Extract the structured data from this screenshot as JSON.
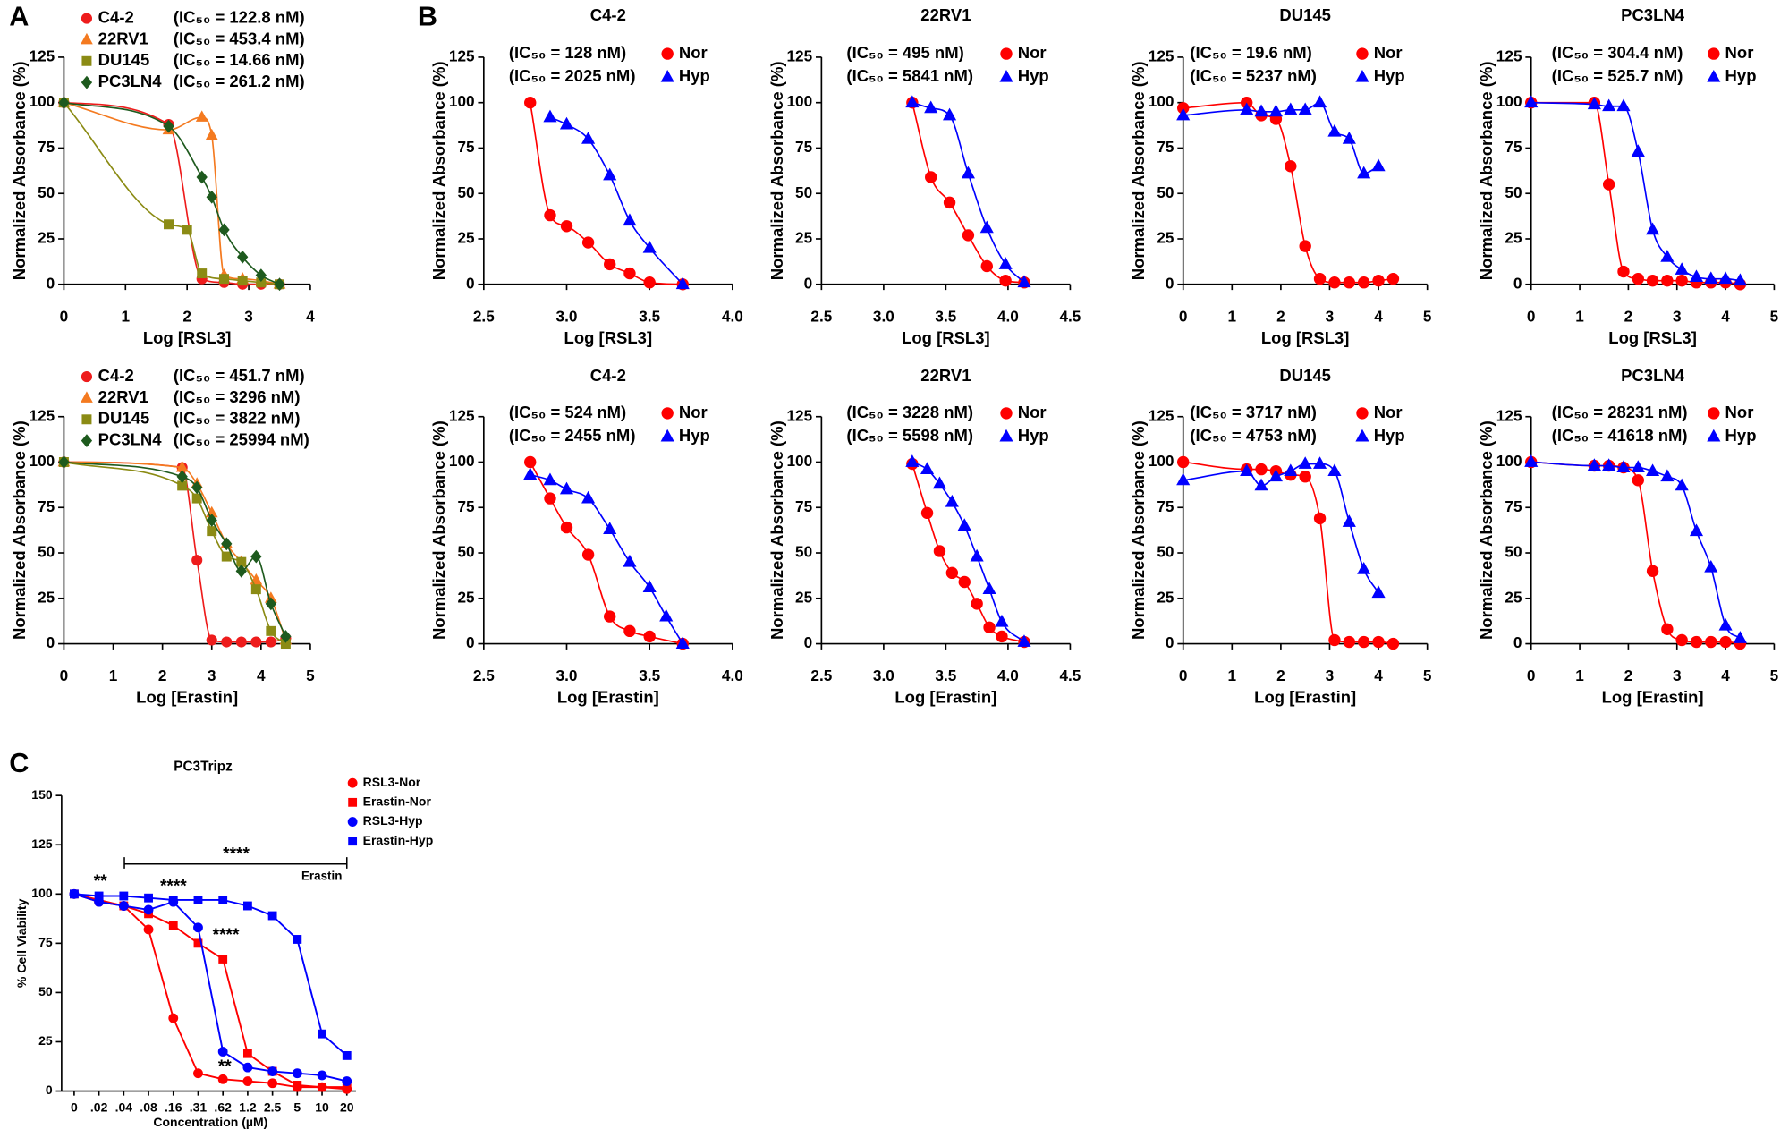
{
  "chart_data": [
    {
      "type": "scatter",
      "panel": "A",
      "fit_curve": true,
      "xlabel": "Log [RSL3]",
      "ylabel": "Normalized Absorbance (%)",
      "xlim": [
        0,
        4
      ],
      "xticks": [
        0,
        1,
        2,
        3,
        4
      ],
      "ylim": [
        0,
        125
      ],
      "yticks": [
        0,
        25,
        50,
        75,
        100,
        125
      ],
      "series": [
        {
          "name": "C4-2",
          "label": "(IC₅₀ = 122.8 nM)",
          "color": "#ee1c1c",
          "marker": "circle",
          "x": [
            0,
            1.7,
            2.24,
            2.6,
            2.9,
            3.2,
            3.5
          ],
          "values": [
            100,
            88,
            3,
            1,
            0,
            0,
            0
          ]
        },
        {
          "name": "22RV1",
          "label": "(IC₅₀ = 453.4 nM)",
          "color": "#f47a20",
          "marker": "triangle",
          "x": [
            0,
            1.7,
            2.24,
            2.4,
            2.6,
            2.9,
            3.2,
            3.5
          ],
          "values": [
            100,
            85,
            92,
            82,
            5,
            3,
            2,
            0
          ]
        },
        {
          "name": "DU145",
          "label": "(IC₅₀ = 14.66 nM)",
          "color": "#8b8b14",
          "marker": "square",
          "x": [
            0,
            1.7,
            2.0,
            2.24,
            2.6,
            2.9,
            3.2,
            3.5
          ],
          "values": [
            100,
            33,
            30,
            6,
            3,
            2,
            1,
            0
          ]
        },
        {
          "name": "PC3LN4",
          "label": "(IC₅₀ = 261.2 nM)",
          "color": "#1e5a1e",
          "marker": "diamond",
          "x": [
            0,
            1.7,
            2.24,
            2.4,
            2.6,
            2.9,
            3.2,
            3.5
          ],
          "values": [
            100,
            87,
            59,
            48,
            30,
            15,
            5,
            0
          ]
        }
      ]
    },
    {
      "type": "scatter",
      "fit_curve": true,
      "xlabel": "Log [Erastin]",
      "ylabel": "Normalized Absorbance (%)",
      "xlim": [
        0,
        5
      ],
      "xticks": [
        0,
        1,
        2,
        3,
        4,
        5
      ],
      "ylim": [
        0,
        125
      ],
      "yticks": [
        0,
        25,
        50,
        75,
        100,
        125
      ],
      "series": [
        {
          "name": "C4-2",
          "label": "(IC₅₀ = 451.7 nM)",
          "color": "#ee1c1c",
          "marker": "circle",
          "x": [
            0,
            2.4,
            2.7,
            3.0,
            3.3,
            3.6,
            3.9,
            4.2,
            4.5
          ],
          "values": [
            100,
            97,
            46,
            2,
            1,
            1,
            1,
            1,
            3
          ]
        },
        {
          "name": "22RV1",
          "label": "(IC₅₀ = 3296 nM)",
          "color": "#f47a20",
          "marker": "triangle",
          "x": [
            0,
            2.4,
            2.7,
            3.0,
            3.3,
            3.6,
            3.9,
            4.2,
            4.5
          ],
          "values": [
            100,
            97,
            88,
            72,
            55,
            45,
            35,
            25,
            2
          ]
        },
        {
          "name": "DU145",
          "label": "(IC₅₀ = 3822 nM)",
          "color": "#8b8b14",
          "marker": "square",
          "x": [
            0,
            2.4,
            2.7,
            3.0,
            3.3,
            3.6,
            3.9,
            4.2,
            4.5
          ],
          "values": [
            100,
            87,
            80,
            62,
            48,
            45,
            30,
            7,
            0
          ]
        },
        {
          "name": "PC3LN4",
          "label": "(IC₅₀ = 25994 nM)",
          "color": "#1e5a1e",
          "marker": "diamond",
          "x": [
            0,
            2.4,
            2.7,
            3.0,
            3.3,
            3.6,
            3.9,
            4.2,
            4.5
          ],
          "values": [
            100,
            92,
            86,
            68,
            55,
            40,
            48,
            22,
            4
          ]
        }
      ]
    },
    {
      "type": "scatter",
      "panel": "B",
      "title": "C4-2",
      "fit_curve": true,
      "xlabel": "Log [RSL3]",
      "ylabel": "Normalized Absorbance (%)",
      "xlim": [
        2.5,
        4
      ],
      "xticks": [
        2.5,
        {
          "value": 3,
          "label": "3.0"
        },
        3.5,
        {
          "value": 4,
          "label": "4.0"
        }
      ],
      "ylim": [
        0,
        125
      ],
      "yticks": [
        0,
        25,
        50,
        75,
        100,
        125
      ],
      "series": [
        {
          "name": "Nor",
          "label": "(IC₅₀ = 128 nM)",
          "color": "#ff0000",
          "marker": "circle",
          "x": [
            2.78,
            2.9,
            3.0,
            3.13,
            3.26,
            3.38,
            3.5,
            3.7
          ],
          "values": [
            100,
            38,
            32,
            23,
            11,
            6,
            1,
            0
          ]
        },
        {
          "name": "Hyp",
          "label": "(IC₅₀ = 2025 nM)",
          "color": "#0000ff",
          "marker": "triangle",
          "x": [
            2.9,
            3.0,
            3.13,
            3.26,
            3.38,
            3.5,
            3.7
          ],
          "values": [
            92,
            88,
            80,
            60,
            35,
            20,
            0
          ]
        }
      ]
    },
    {
      "type": "scatter",
      "title": "22RV1",
      "fit_curve": true,
      "xlabel": "Log [RSL3]",
      "ylabel": "Normalized Absorbance (%)",
      "xlim": [
        2.5,
        4.5
      ],
      "xticks": [
        2.5,
        {
          "value": 3,
          "label": "3.0"
        },
        3.5,
        {
          "value": 4,
          "label": "4.0"
        },
        4.5
      ],
      "ylim": [
        0,
        125
      ],
      "yticks": [
        0,
        25,
        50,
        75,
        100,
        125
      ],
      "series": [
        {
          "name": "Nor",
          "label": "(IC₅₀ = 495 nM)",
          "color": "#ff0000",
          "marker": "circle",
          "x": [
            3.23,
            3.38,
            3.53,
            3.68,
            3.83,
            3.98,
            4.13
          ],
          "values": [
            100,
            59,
            45,
            27,
            10,
            2,
            1
          ]
        },
        {
          "name": "Hyp",
          "label": "(IC₅₀ = 5841 nM)",
          "color": "#0000ff",
          "marker": "triangle",
          "x": [
            3.23,
            3.38,
            3.53,
            3.68,
            3.83,
            3.98,
            4.13
          ],
          "values": [
            100,
            97,
            93,
            61,
            31,
            11,
            1
          ]
        }
      ]
    },
    {
      "type": "scatter",
      "title": "DU145",
      "fit_curve": true,
      "xlabel": "Log [RSL3]",
      "ylabel": "Normalized Absorbance (%)",
      "xlim": [
        0,
        5
      ],
      "xticks": [
        0,
        1,
        2,
        3,
        4,
        5
      ],
      "ylim": [
        0,
        125
      ],
      "yticks": [
        0,
        25,
        50,
        75,
        100,
        125
      ],
      "series": [
        {
          "name": "Nor",
          "label": "(IC₅₀ = 19.6 nM)",
          "color": "#ff0000",
          "marker": "circle",
          "x": [
            0,
            1.3,
            1.6,
            1.9,
            2.2,
            2.5,
            2.8,
            3.1,
            3.4,
            3.7,
            4.0,
            4.3
          ],
          "values": [
            97,
            100,
            93,
            91,
            65,
            21,
            3,
            1,
            1,
            1,
            2,
            3
          ]
        },
        {
          "name": "Hyp",
          "label": "(IC₅₀ = 5237 nM)",
          "color": "#0000ff",
          "marker": "triangle",
          "x": [
            0,
            1.3,
            1.6,
            1.9,
            2.2,
            2.5,
            2.8,
            3.1,
            3.4,
            3.7,
            4.0
          ],
          "values": [
            93,
            96,
            95,
            95,
            96,
            96,
            100,
            84,
            80,
            61,
            65
          ]
        }
      ]
    },
    {
      "type": "scatter",
      "title": "PC3LN4",
      "fit_curve": true,
      "xlabel": "Log [RSL3]",
      "ylabel": "Normalized Absorbance (%)",
      "xlim": [
        0,
        5
      ],
      "xticks": [
        0,
        1,
        2,
        3,
        4,
        5
      ],
      "ylim": [
        0,
        125
      ],
      "yticks": [
        0,
        25,
        50,
        75,
        100,
        125
      ],
      "series": [
        {
          "name": "Nor",
          "label": "(IC₅₀ = 304.4 nM)",
          "color": "#ff0000",
          "marker": "circle",
          "x": [
            0,
            1.3,
            1.6,
            1.9,
            2.2,
            2.5,
            2.8,
            3.1,
            3.4,
            3.7,
            4.0,
            4.3
          ],
          "values": [
            100,
            100,
            55,
            7,
            3,
            2,
            2,
            2,
            1,
            1,
            1,
            0
          ]
        },
        {
          "name": "Hyp",
          "label": "(IC₅₀ = 525.7 nM)",
          "color": "#0000ff",
          "marker": "triangle",
          "x": [
            0,
            1.3,
            1.6,
            1.9,
            2.2,
            2.5,
            2.8,
            3.1,
            3.4,
            3.7,
            4.0,
            4.3
          ],
          "values": [
            100,
            99,
            98,
            98,
            73,
            30,
            15,
            8,
            4,
            3,
            3,
            2
          ]
        }
      ]
    },
    {
      "type": "scatter",
      "title": "C4-2",
      "fit_curve": true,
      "xlabel": "Log [Erastin]",
      "ylabel": "Normalized Absorbance (%)",
      "xlim": [
        2.5,
        4
      ],
      "xticks": [
        2.5,
        {
          "value": 3,
          "label": "3.0"
        },
        3.5,
        {
          "value": 4,
          "label": "4.0"
        }
      ],
      "ylim": [
        0,
        125
      ],
      "yticks": [
        0,
        25,
        50,
        75,
        100,
        125
      ],
      "series": [
        {
          "name": "Nor",
          "label": "(IC₅₀ = 524 nM)",
          "color": "#ff0000",
          "marker": "circle",
          "x": [
            2.78,
            2.9,
            3.0,
            3.13,
            3.26,
            3.38,
            3.5,
            3.7
          ],
          "values": [
            100,
            80,
            64,
            49,
            15,
            7,
            4,
            0
          ]
        },
        {
          "name": "Hyp",
          "label": "(IC₅₀ = 2455 nM)",
          "color": "#0000ff",
          "marker": "triangle",
          "x": [
            2.78,
            2.9,
            3.0,
            3.13,
            3.26,
            3.38,
            3.5,
            3.6,
            3.7
          ],
          "values": [
            93,
            90,
            85,
            80,
            63,
            45,
            31,
            15,
            0
          ]
        }
      ]
    },
    {
      "type": "scatter",
      "title": "22RV1",
      "fit_curve": true,
      "xlabel": "Log [Erastin]",
      "ylabel": "Normalized Absorbance (%)",
      "xlim": [
        2.5,
        4.5
      ],
      "xticks": [
        2.5,
        {
          "value": 3,
          "label": "3.0"
        },
        3.5,
        {
          "value": 4,
          "label": "4.0"
        },
        4.5
      ],
      "ylim": [
        0,
        125
      ],
      "yticks": [
        0,
        25,
        50,
        75,
        100,
        125
      ],
      "series": [
        {
          "name": "Nor",
          "label": "(IC₅₀ = 3228 nM)",
          "color": "#ff0000",
          "marker": "circle",
          "x": [
            3.23,
            3.35,
            3.45,
            3.55,
            3.65,
            3.75,
            3.85,
            3.95,
            4.13
          ],
          "values": [
            99,
            72,
            51,
            39,
            34,
            22,
            9,
            4,
            1
          ]
        },
        {
          "name": "Hyp",
          "label": "(IC₅₀ = 5598 nM)",
          "color": "#0000ff",
          "marker": "triangle",
          "x": [
            3.23,
            3.35,
            3.45,
            3.55,
            3.65,
            3.75,
            3.85,
            3.95,
            4.13
          ],
          "values": [
            100,
            96,
            88,
            78,
            65,
            48,
            30,
            12,
            1
          ]
        }
      ]
    },
    {
      "type": "scatter",
      "title": "DU145",
      "fit_curve": true,
      "xlabel": "Log [Erastin]",
      "ylabel": "Normalized Absorbance (%)",
      "xlim": [
        0,
        5
      ],
      "xticks": [
        0,
        1,
        2,
        3,
        4,
        5
      ],
      "ylim": [
        0,
        125
      ],
      "yticks": [
        0,
        25,
        50,
        75,
        100,
        125
      ],
      "series": [
        {
          "name": "Nor",
          "label": "(IC₅₀ = 3717 nM)",
          "color": "#ff0000",
          "marker": "circle",
          "x": [
            0,
            1.3,
            1.6,
            1.9,
            2.2,
            2.5,
            2.8,
            3.1,
            3.4,
            3.7,
            4.0,
            4.3
          ],
          "values": [
            100,
            96,
            96,
            95,
            93,
            92,
            69,
            2,
            1,
            1,
            1,
            0
          ]
        },
        {
          "name": "Hyp",
          "label": "(IC₅₀ = 4753 nM)",
          "color": "#0000ff",
          "marker": "triangle",
          "x": [
            0,
            1.3,
            1.6,
            1.9,
            2.2,
            2.5,
            2.8,
            3.1,
            3.4,
            3.7,
            4.0
          ],
          "values": [
            90,
            95,
            87,
            92,
            95,
            99,
            99,
            95,
            67,
            41,
            28
          ]
        }
      ]
    },
    {
      "type": "scatter",
      "title": "PC3LN4",
      "fit_curve": true,
      "xlabel": "Log [Erastin]",
      "ylabel": "Normalized Absorbance (%)",
      "xlim": [
        0,
        5
      ],
      "xticks": [
        0,
        1,
        2,
        3,
        4,
        5
      ],
      "ylim": [
        0,
        125
      ],
      "yticks": [
        0,
        25,
        50,
        75,
        100,
        125
      ],
      "series": [
        {
          "name": "Nor",
          "label": "(IC₅₀ = 28231 nM)",
          "color": "#ff0000",
          "marker": "circle",
          "x": [
            0,
            1.3,
            1.6,
            1.9,
            2.2,
            2.5,
            2.8,
            3.1,
            3.4,
            3.7,
            4.0,
            4.3
          ],
          "values": [
            100,
            98,
            98,
            97,
            90,
            40,
            8,
            2,
            1,
            1,
            1,
            0
          ]
        },
        {
          "name": "Hyp",
          "label": "(IC₅₀ = 41618 nM)",
          "color": "#0000ff",
          "marker": "triangle",
          "x": [
            0,
            1.3,
            1.6,
            1.9,
            2.2,
            2.5,
            2.8,
            3.1,
            3.4,
            3.7,
            4.0,
            4.3
          ],
          "values": [
            100,
            98,
            98,
            97,
            97,
            95,
            92,
            87,
            62,
            42,
            10,
            3
          ]
        }
      ]
    },
    {
      "type": "line",
      "panel": "C",
      "title": "PC3Tripz",
      "xlabel": "Concentration (µM)",
      "ylabel": "% Cell Viability",
      "categories": [
        "0",
        ".02",
        ".04",
        ".08",
        ".16",
        ".31",
        ".62",
        "1.2",
        "2.5",
        "5",
        "10",
        "20"
      ],
      "ylim": [
        0,
        150
      ],
      "yticks": [
        0,
        25,
        50,
        75,
        100,
        125,
        150
      ],
      "annotations": [
        "****",
        "Erastin",
        "**",
        "****",
        "****",
        "**"
      ],
      "series": [
        {
          "name": "RSL3-Nor",
          "color": "#ff0000",
          "marker": "circle",
          "values": [
            100,
            96,
            94,
            82,
            37,
            9,
            6,
            5,
            4,
            2,
            2,
            1
          ]
        },
        {
          "name": "Erastin-Nor",
          "color": "#ff0000",
          "marker": "square",
          "values": [
            100,
            97,
            94,
            90,
            84,
            75,
            67,
            19,
            10,
            3,
            2,
            2
          ]
        },
        {
          "name": "RSL3-Hyp",
          "color": "#0000ff",
          "marker": "circle",
          "values": [
            100,
            96,
            94,
            92,
            96,
            83,
            20,
            12,
            10,
            9,
            8,
            5
          ]
        },
        {
          "name": "Erastin-Hyp",
          "color": "#0000ff",
          "marker": "square",
          "values": [
            100,
            99,
            99,
            98,
            97,
            97,
            97,
            94,
            89,
            77,
            29,
            18
          ]
        }
      ]
    }
  ]
}
